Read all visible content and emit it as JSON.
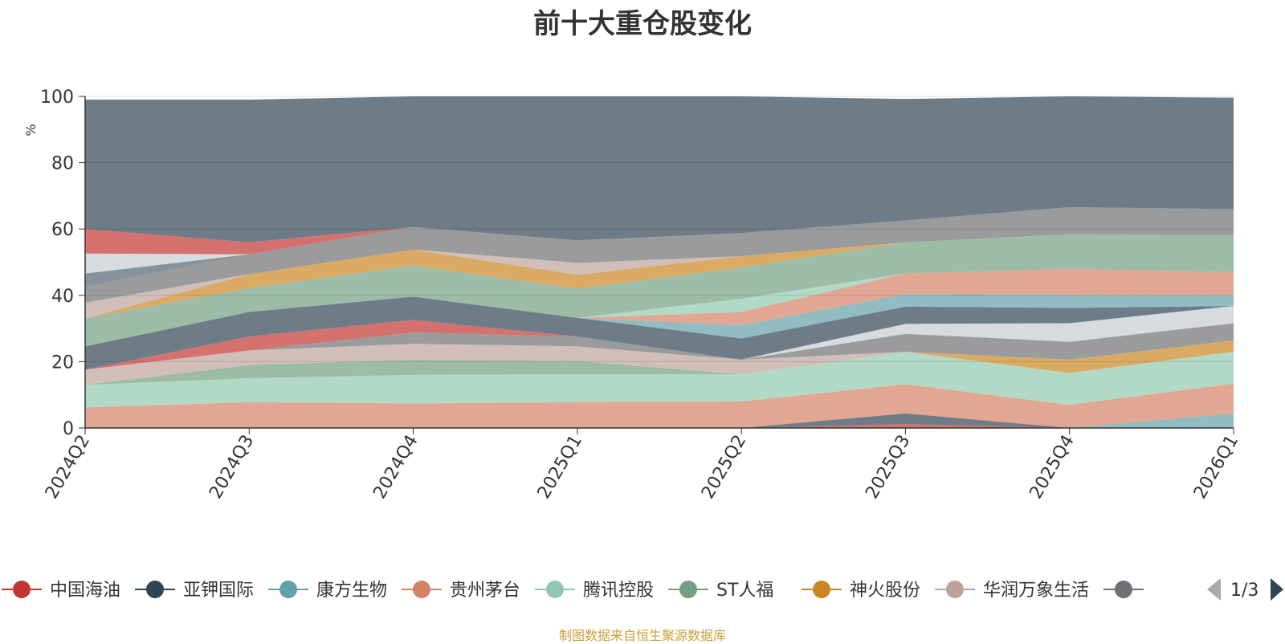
{
  "chart_data": {
    "type": "area",
    "stacked": true,
    "title": "前十大重仓股变化",
    "ylabel": "%",
    "ylim": [
      0,
      100
    ],
    "yticks": [
      0,
      20,
      40,
      60,
      80,
      100
    ],
    "grid": true,
    "categories": [
      "2024Q2",
      "2024Q3",
      "2024Q4",
      "2025Q1",
      "2025Q2",
      "2025Q3",
      "2025Q4",
      "2026Q1"
    ],
    "series": [
      {
        "name": "中国海油",
        "color": "#c23531",
        "values": [
          0,
          0,
          0,
          0,
          0,
          1.2,
          0,
          0
        ]
      },
      {
        "name": "亚钾国际",
        "color": "#2f4554",
        "values": [
          0,
          0,
          0,
          0,
          0,
          3.2,
          0,
          0
        ]
      },
      {
        "name": "康方生物",
        "color": "#61a0a8",
        "values": [
          0,
          0,
          0,
          0,
          0,
          0,
          0,
          4.4
        ]
      },
      {
        "name": "贵州茅台",
        "color": "#d48265",
        "values": [
          6.2,
          7.8,
          7.4,
          7.8,
          8.0,
          8.8,
          7.0,
          9.0
        ]
      },
      {
        "name": "腾讯控股",
        "color": "#91c7ae",
        "values": [
          6.8,
          7.2,
          8.6,
          8.4,
          8.2,
          9.8,
          9.6,
          9.6
        ]
      },
      {
        "name": "ST人福",
        "color": "#749f83",
        "values": [
          0,
          4.0,
          4.6,
          4.0,
          0,
          0,
          0,
          0
        ]
      },
      {
        "name": "神火股份",
        "color": "#ca8622",
        "values": [
          0,
          0,
          0,
          0,
          0,
          0,
          4.0,
          3.4
        ]
      },
      {
        "name": "华润万象生活",
        "color": "#bda29a",
        "values": [
          4.6,
          4.4,
          4.8,
          4.4,
          4.4,
          0,
          0,
          0
        ]
      },
      {
        "name": "",
        "color": "#6e7074",
        "values": [
          0,
          0,
          3.4,
          3.0,
          0,
          5.4,
          5.4,
          5.2
        ]
      },
      {
        "name": "",
        "color": "#c23531",
        "values": [
          0,
          4.2,
          3.8,
          0,
          0,
          0,
          0,
          0
        ]
      },
      {
        "name": "",
        "color": "#546570",
        "values": [
          0,
          0,
          0,
          0,
          0,
          0,
          0,
          0
        ]
      },
      {
        "name": "",
        "color": "#c4ccd3",
        "values": [
          0,
          0,
          0,
          0,
          0,
          3.0,
          5.6,
          5.2
        ]
      },
      {
        "name": "",
        "color": "#2f4554",
        "values": [
          7.0,
          7.4,
          7.0,
          5.6,
          6.4,
          5.2,
          4.6,
          0
        ]
      },
      {
        "name": "",
        "color": "#61a0a8",
        "values": [
          0,
          0,
          0,
          0,
          4.0,
          3.8,
          4.0,
          3.2
        ]
      },
      {
        "name": "",
        "color": "#d48265",
        "values": [
          0,
          0,
          0,
          0,
          4.0,
          6.2,
          7.8,
          7.0
        ]
      },
      {
        "name": "",
        "color": "#91c7ae",
        "values": [
          0,
          0,
          0,
          0,
          4.0,
          0,
          0,
          0
        ]
      },
      {
        "name": "",
        "color": "#749f83",
        "values": [
          8.4,
          7.2,
          9.4,
          8.8,
          9.4,
          9.4,
          10.4,
          11.2
        ]
      },
      {
        "name": "",
        "color": "#ca8622",
        "values": [
          0,
          4.2,
          4.8,
          4.2,
          3.4,
          0,
          0,
          0
        ]
      },
      {
        "name": "",
        "color": "#bda29a",
        "values": [
          4.8,
          0,
          0,
          3.6,
          0,
          0,
          0,
          0
        ]
      },
      {
        "name": "",
        "color": "#6e7074",
        "values": [
          4.8,
          6.0,
          6.8,
          6.8,
          7.0,
          6.6,
          8.2,
          7.8
        ]
      },
      {
        "name": "",
        "color": "#546570",
        "values": [
          4.0,
          0,
          0,
          0,
          0,
          0,
          0,
          0
        ]
      },
      {
        "name": "",
        "color": "#c4ccd3",
        "values": [
          6.0,
          0,
          0,
          0,
          0,
          0,
          0,
          0
        ]
      },
      {
        "name": "",
        "color": "#c23531",
        "values": [
          7.4,
          3.6,
          0,
          0,
          0,
          0,
          0,
          0
        ]
      },
      {
        "name": "",
        "color": "#2f4554",
        "values": [
          39.0,
          43.0,
          39.4,
          43.4,
          41.2,
          36.6,
          33.4,
          33.6
        ]
      }
    ]
  },
  "legend": {
    "items": [
      {
        "label": "中国海油",
        "color": "#c23531"
      },
      {
        "label": "亚钾国际",
        "color": "#2f4554"
      },
      {
        "label": "康方生物",
        "color": "#61a0a8"
      },
      {
        "label": "贵州茅台",
        "color": "#d48265"
      },
      {
        "label": "腾讯控股",
        "color": "#91c7ae"
      },
      {
        "label": "ST人福",
        "color": "#749f83"
      },
      {
        "label": "神火股份",
        "color": "#ca8622"
      },
      {
        "label": "华润万象生活",
        "color": "#bda29a"
      },
      {
        "label": "",
        "color": "#6e7074"
      }
    ],
    "page_text": "1/3",
    "prev_icon": "triangle-left-icon",
    "next_icon": "triangle-right-icon"
  },
  "source_note": "制图数据来自恒生聚源数据库"
}
